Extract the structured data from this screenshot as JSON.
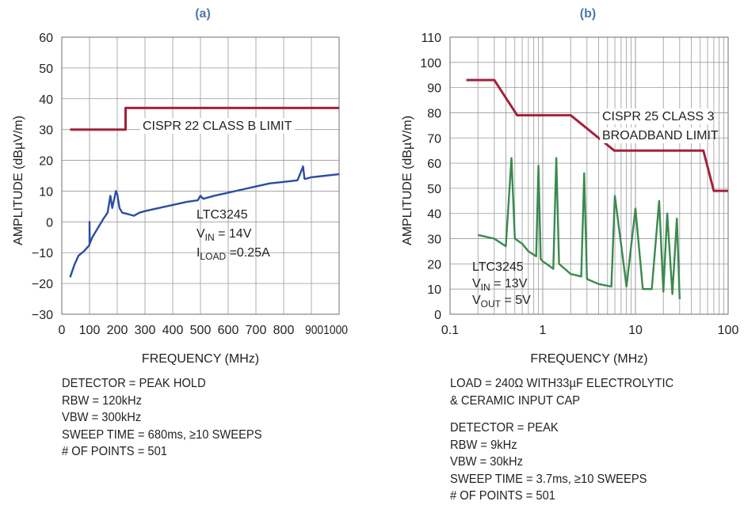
{
  "chart_data": [
    {
      "type": "line",
      "panel_label": "(a)",
      "xlabel": "FREQUENCY (MHz)",
      "ylabel": "AMPLITUDE (dBµV/m)",
      "xscale": "linear",
      "xlim": [
        0,
        1000
      ],
      "ylim": [
        -30,
        60
      ],
      "xticks": [
        "0",
        "100",
        "200",
        "300",
        "400",
        "500",
        "600",
        "700",
        "800",
        "9001000"
      ],
      "yticks": [
        "60",
        "50",
        "40",
        "30",
        "20",
        "10",
        "0",
        "−10",
        "−20",
        "−30"
      ],
      "grid": true,
      "series": [
        {
          "name": "CISPR 22 CLASS B LIMIT",
          "color": "#a3223a",
          "x": [
            30,
            230,
            230,
            1000
          ],
          "y": [
            30,
            30,
            37,
            37
          ]
        },
        {
          "color": "#2a4ea0",
          "x": [
            30,
            45,
            60,
            80,
            95,
            100,
            100,
            101,
            110,
            130,
            150,
            165,
            175,
            182,
            188,
            195,
            200,
            208,
            218,
            240,
            260,
            280,
            300,
            350,
            400,
            450,
            490,
            500,
            510,
            550,
            600,
            650,
            700,
            750,
            800,
            850,
            870,
            875,
            880,
            900,
            950,
            1000
          ],
          "y": [
            -18,
            -14,
            -11,
            -9.5,
            -8,
            -7.5,
            0,
            -7,
            -5,
            -2,
            1,
            3,
            8.5,
            4.5,
            7,
            10,
            9,
            4.5,
            3,
            2.5,
            2,
            3,
            3.5,
            4.5,
            5.5,
            6.5,
            7,
            8.5,
            7.5,
            8.5,
            9.5,
            10.5,
            11.5,
            12.5,
            13,
            13.5,
            18,
            14,
            14,
            14.5,
            15,
            15.5
          ]
        }
      ],
      "annotations": [
        {
          "text": "CISPR 22 CLASS B LIMIT"
        },
        {
          "text": "LTC3245"
        },
        {
          "text": "V",
          "sub": "IN",
          "tail": " = 14V"
        },
        {
          "text": "I",
          "sub": "LOAD",
          "tail": " =0.25A"
        }
      ]
    },
    {
      "type": "line",
      "panel_label": "(b)",
      "xlabel": "FREQUENCY (MHz)",
      "ylabel": "AMPLITUDE (dBµV/m)",
      "xscale": "log",
      "xlim": [
        0.1,
        100
      ],
      "ylim": [
        0,
        110
      ],
      "xticks": [
        "0.1",
        "1",
        "10",
        "100"
      ],
      "yticks": [
        "110",
        "100",
        "90",
        "80",
        "70",
        "60",
        "50",
        "40",
        "30",
        "20",
        "10",
        "0"
      ],
      "grid": true,
      "series": [
        {
          "name": "CISPR 25 CLASS 3 BROADBAND LIMIT",
          "color": "#a3223a",
          "x": [
            0.15,
            0.3,
            0.53,
            2,
            5.9,
            54,
            70,
            100
          ],
          "y": [
            93,
            93,
            79,
            79,
            65,
            65,
            49,
            49
          ]
        },
        {
          "color": "#3a8a4e",
          "x": [
            0.2,
            0.3,
            0.4,
            0.46,
            0.5,
            0.6,
            0.7,
            0.85,
            0.9,
            0.95,
            1.0,
            1.1,
            1.3,
            1.4,
            1.5,
            2.0,
            2.6,
            2.8,
            3.0,
            4.0,
            5.5,
            6.0,
            8,
            10,
            12,
            15,
            18,
            20,
            22,
            25,
            28,
            30
          ],
          "y": [
            31.5,
            30,
            27,
            62,
            30,
            28,
            25,
            23,
            59,
            22,
            21,
            20,
            18,
            62,
            20,
            16,
            15,
            56,
            14,
            12,
            11,
            47,
            11,
            42,
            10,
            10,
            45,
            9,
            40,
            8,
            38,
            6
          ]
        }
      ],
      "annotations": [
        {
          "text": "CISPR 25 CLASS 3"
        },
        {
          "text": "BROADBAND LIMIT"
        },
        {
          "text": "LTC3245"
        },
        {
          "text": "V",
          "sub": "IN",
          "tail": " = 13V"
        },
        {
          "text": "V",
          "sub": "OUT",
          "tail": " = 5V"
        }
      ]
    }
  ],
  "notes_a": [
    "DETECTOR = PEAK HOLD",
    "RBW = 120kHz",
    "VBW = 300kHz",
    "SWEEP TIME = 680ms, ≥10 SWEEPS",
    "# OF POINTS = 501"
  ],
  "notes_b_load": [
    "LOAD = 240Ω WITH33µF ELECTROLYTIC",
    "& CERAMIC INPUT CAP"
  ],
  "notes_b": [
    "DETECTOR = PEAK",
    "RBW = 9kHz",
    "VBW = 30kHz",
    "SWEEP TIME = 3.7ms, ≥10 SWEEPS",
    "# OF POINTS = 501"
  ],
  "colors": {
    "limit": "#a3223a",
    "trace_a": "#2a4ea0",
    "trace_b": "#3a8a4e",
    "panel_label": "#4b7aa8",
    "grid": "#9a9a9a"
  }
}
